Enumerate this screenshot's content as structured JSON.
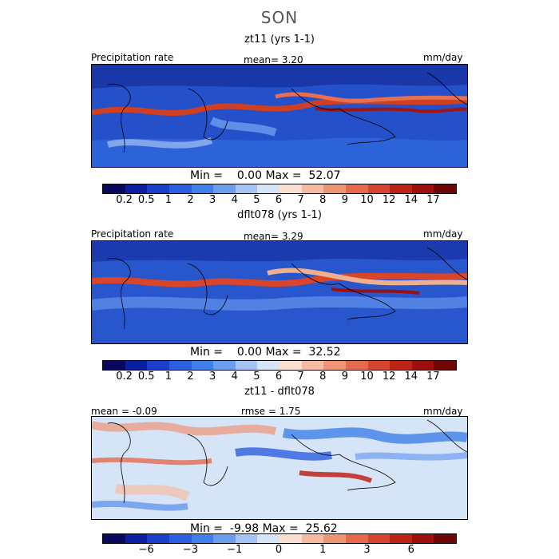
{
  "season": "SON",
  "units": "mm/day",
  "panels": [
    {
      "title": "zt11 (yrs 1-1)",
      "left_label": "Precipitation rate",
      "mid_label": "mean=    3.20",
      "right_label": "mm/day",
      "minmax": "Min =    0.00 Max =  52.07"
    },
    {
      "title": "dflt078 (yrs 1-1)",
      "left_label": "Precipitation rate",
      "mid_label": "mean=    3.29",
      "right_label": "mm/day",
      "minmax": "Min =    0.00 Max =  32.52"
    },
    {
      "title": "zt11 - dflt078",
      "left_label": "mean =  -0.09",
      "mid_label": "rmse =    1.75",
      "right_label": "mm/day",
      "minmax": "Min =  -9.98 Max =  25.62"
    }
  ],
  "precip_colorbar": {
    "colors": [
      "#08085e",
      "#0a1fa0",
      "#1a3fcc",
      "#2a5fe0",
      "#3f7fe8",
      "#6c9ef0",
      "#a5c3f4",
      "#d6e4f7",
      "#fbe0d2",
      "#f6bca3",
      "#ef9475",
      "#e56a4c",
      "#d6432e",
      "#bd2317",
      "#9c0f0c",
      "#6e0606"
    ],
    "ticks": [
      "0.2",
      "0.5",
      "1",
      "2",
      "3",
      "4",
      "5",
      "6",
      "7",
      "8",
      "9",
      "10",
      "12",
      "14",
      "17"
    ]
  },
  "diff_colorbar": {
    "colors": [
      "#08085e",
      "#0a1fa0",
      "#1a3fcc",
      "#2a5fe0",
      "#3f7fe8",
      "#6c9ef0",
      "#a5c3f4",
      "#d6e4f7",
      "#fbe0d2",
      "#f6bca3",
      "#ef9475",
      "#e56a4c",
      "#d6432e",
      "#bd2317",
      "#9c0f0c",
      "#6e0606"
    ],
    "ticks": [
      "−6",
      "−3",
      "−1",
      "0",
      "1",
      "3",
      "6"
    ]
  }
}
